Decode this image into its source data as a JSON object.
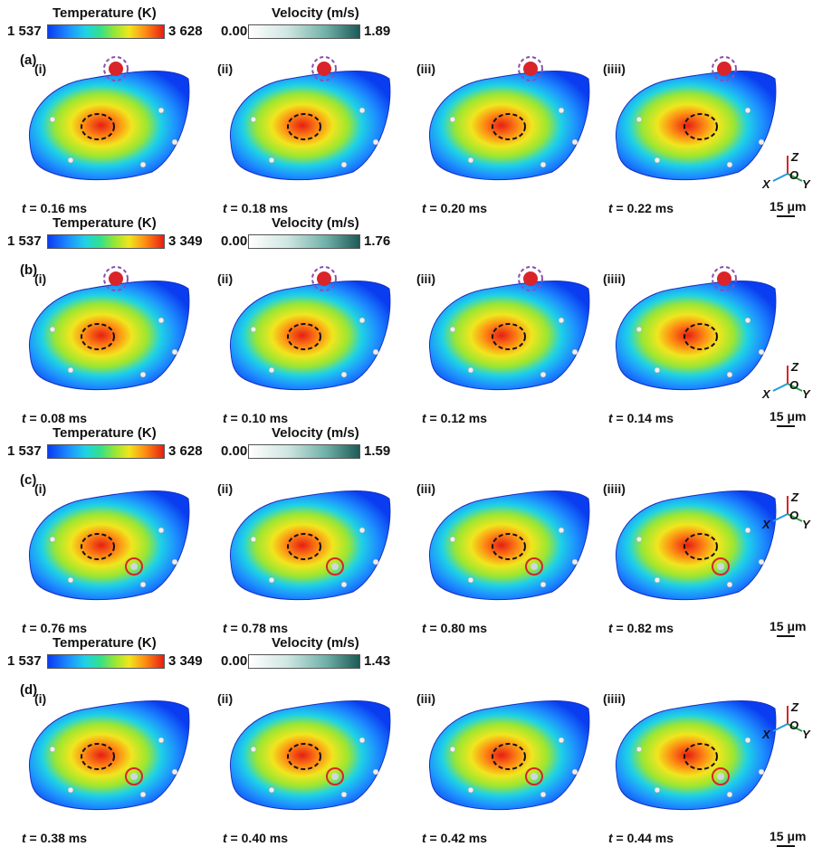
{
  "rows": [
    {
      "letter": "(a)",
      "temp": {
        "title": "Temperature (K)",
        "min": "1 537",
        "max": "3 628"
      },
      "vel": {
        "title": "Velocity (m/s)",
        "min": "0.00",
        "max": "1.89"
      },
      "subs": [
        "(i)",
        "(ii)",
        "(iii)",
        "(iiii)"
      ],
      "times": [
        "0.16 ms",
        "0.18 ms",
        "0.20 ms",
        "0.22 ms"
      ],
      "t_label": "t",
      "t_eq": " = ",
      "scale": "15 μm",
      "axes": {
        "x": "X",
        "y": "Y",
        "z": "Z",
        "o": "O"
      }
    },
    {
      "letter": "(b)",
      "temp": {
        "title": "Temperature (K)",
        "min": "1 537",
        "max": "3 349"
      },
      "vel": {
        "title": "Velocity (m/s)",
        "min": "0.00",
        "max": "1.76"
      },
      "subs": [
        "(i)",
        "(ii)",
        "(iii)",
        "(iiii)"
      ],
      "times": [
        "0.08 ms",
        "0.10 ms",
        "0.12 ms",
        "0.14 ms"
      ],
      "t_label": "t",
      "t_eq": " = ",
      "scale": "15 μm",
      "axes": {
        "x": "X",
        "y": "Y",
        "z": "Z",
        "o": "O"
      }
    },
    {
      "letter": "(c)",
      "temp": {
        "title": "Temperature (K)",
        "min": "1 537",
        "max": "3 628"
      },
      "vel": {
        "title": "Velocity (m/s)",
        "min": "0.00",
        "max": "1.59"
      },
      "subs": [
        "(i)",
        "(ii)",
        "(iii)",
        "(iiii)"
      ],
      "times": [
        "0.76 ms",
        "0.78 ms",
        "0.80 ms",
        "0.82 ms"
      ],
      "t_label": "t",
      "t_eq": " = ",
      "scale": "15 μm",
      "axes": {
        "x": "X",
        "y": "Y",
        "z": "Z",
        "o": "O"
      }
    },
    {
      "letter": "(d)",
      "temp": {
        "title": "Temperature (K)",
        "min": "1 537",
        "max": "3 349"
      },
      "vel": {
        "title": "Velocity (m/s)",
        "min": "0.00",
        "max": "1.43"
      },
      "subs": [
        "(i)",
        "(ii)",
        "(iii)",
        "(iiii)"
      ],
      "times": [
        "0.38 ms",
        "0.40 ms",
        "0.42 ms",
        "0.44 ms"
      ],
      "t_label": "t",
      "t_eq": " = ",
      "scale": "15 μm",
      "axes": {
        "x": "X",
        "y": "Y",
        "z": "Z",
        "o": "O"
      }
    }
  ],
  "colors": {
    "temp_hot": "#e61e14",
    "temp_cold": "#0a3cf0",
    "vel_max": "#1e5a56",
    "marker_black": "#111111",
    "marker_purple": "#8a4fb0",
    "marker_red": "#d9242a"
  }
}
